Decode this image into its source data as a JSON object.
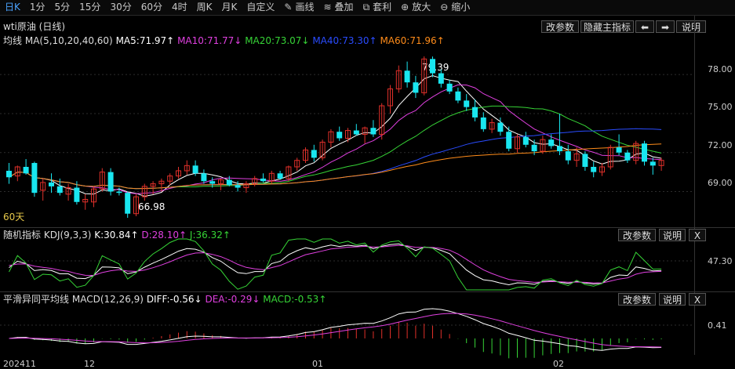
{
  "toolbar": {
    "items": [
      "日K",
      "1分",
      "5分",
      "15分",
      "30分",
      "60分",
      "4时",
      "周K",
      "月K",
      "自定义"
    ],
    "active": "日K",
    "draw_label": "画线",
    "overlay_label": "叠加",
    "arb_label": "套利",
    "zoom_in_label": "放大",
    "zoom_out_label": "缩小"
  },
  "main": {
    "symbol_title": "wti原油 (日线)",
    "ma_label": "均线",
    "ma_params": "MA(5,10,20,40,60)",
    "ma5": "MA5:71.97↑",
    "ma10": "MA10:71.77↓",
    "ma20": "MA20:73.07↓",
    "ma40": "MA40:73.30↑",
    "ma60": "MA60:71.96↑",
    "btn_params": "改参数",
    "btn_hide": "隐藏主指标",
    "btn_left": "⬅",
    "btn_right": "➡",
    "btn_help": "说明",
    "high_label": "79.39",
    "low_label": "66.98",
    "period_label": "60天",
    "yticks": [
      "78.00",
      "75.00",
      "72.00",
      "69.00"
    ]
  },
  "kdj": {
    "label": "随机指标",
    "params": "KDJ(9,3,3)",
    "k": "K:30.84↑",
    "d": "D:28.10↑",
    "j": "J:36.32↑",
    "btn_params": "改参数",
    "btn_help": "说明",
    "btn_close": "X",
    "ytick": "47.30"
  },
  "macd": {
    "label": "平滑异同平均线",
    "params": "MACD(12,26,9)",
    "diff": "DIFF:-0.56↓",
    "dea": "DEA:-0.29↓",
    "macd": "MACD:-0.53↑",
    "btn_params": "改参数",
    "btn_help": "说明",
    "btn_close": "X",
    "ytick": "0.41"
  },
  "xaxis": {
    "labels": [
      "202411",
      "12",
      "01",
      "02"
    ]
  },
  "colors": {
    "up": "#e0302a",
    "down": "#19e6f0",
    "ma5": "#ffffff",
    "ma10": "#e040e0",
    "ma20": "#36d436",
    "ma40": "#2a4cff",
    "ma60": "#ff8c1a",
    "kdj_k": "#ffffff",
    "kdj_d": "#e040e0",
    "kdj_j": "#36d436"
  },
  "chart_data": {
    "type": "candlestick",
    "yrange": [
      66.5,
      80.0
    ],
    "ohlc": [
      [
        70.6,
        71.2,
        69.6,
        70.1
      ],
      [
        70.2,
        71.0,
        69.8,
        70.9
      ],
      [
        70.9,
        71.5,
        70.3,
        70.4
      ],
      [
        71.2,
        71.3,
        68.6,
        68.9
      ],
      [
        69.1,
        70.0,
        68.3,
        69.7
      ],
      [
        69.7,
        70.4,
        68.9,
        69.4
      ],
      [
        69.4,
        70.0,
        68.7,
        68.9
      ],
      [
        68.8,
        69.6,
        68.3,
        69.3
      ],
      [
        69.3,
        69.8,
        68.0,
        68.2
      ],
      [
        68.2,
        68.8,
        67.6,
        68.4
      ],
      [
        68.2,
        69.4,
        67.8,
        69.2
      ],
      [
        69.2,
        70.8,
        69.0,
        70.5
      ],
      [
        70.5,
        70.8,
        68.7,
        69.0
      ],
      [
        69.0,
        69.3,
        68.7,
        68.9
      ],
      [
        68.9,
        69.0,
        66.98,
        67.3
      ],
      [
        67.3,
        68.8,
        67.1,
        68.6
      ],
      [
        68.6,
        69.6,
        68.3,
        69.4
      ],
      [
        69.4,
        69.8,
        68.8,
        69.6
      ],
      [
        69.6,
        70.0,
        69.0,
        69.8
      ],
      [
        69.8,
        70.4,
        69.5,
        70.2
      ],
      [
        70.2,
        70.9,
        70.0,
        70.6
      ],
      [
        70.6,
        71.4,
        70.3,
        71.0
      ],
      [
        71.0,
        71.4,
        70.2,
        70.4
      ],
      [
        70.4,
        70.7,
        69.6,
        69.8
      ],
      [
        69.8,
        70.1,
        69.3,
        69.6
      ],
      [
        69.6,
        70.0,
        69.1,
        69.9
      ],
      [
        69.9,
        70.2,
        69.4,
        69.5
      ],
      [
        69.5,
        69.8,
        69.0,
        69.3
      ],
      [
        69.3,
        69.8,
        68.9,
        69.6
      ],
      [
        69.6,
        70.2,
        69.4,
        70.0
      ],
      [
        70.0,
        70.4,
        69.7,
        69.8
      ],
      [
        69.8,
        70.6,
        69.6,
        70.4
      ],
      [
        70.4,
        70.6,
        69.9,
        70.0
      ],
      [
        70.0,
        71.0,
        69.8,
        70.9
      ],
      [
        70.9,
        71.6,
        70.6,
        71.4
      ],
      [
        71.4,
        72.4,
        71.2,
        72.2
      ],
      [
        72.2,
        72.6,
        71.3,
        71.6
      ],
      [
        71.6,
        73.0,
        71.4,
        72.8
      ],
      [
        72.8,
        73.8,
        72.4,
        73.6
      ],
      [
        73.6,
        74.0,
        72.9,
        73.1
      ],
      [
        73.1,
        73.9,
        72.8,
        73.7
      ],
      [
        73.7,
        74.2,
        73.3,
        73.4
      ],
      [
        73.4,
        74.0,
        72.7,
        73.9
      ],
      [
        73.9,
        74.5,
        73.2,
        73.4
      ],
      [
        73.4,
        75.8,
        73.0,
        75.6
      ],
      [
        75.6,
        77.2,
        75.0,
        76.9
      ],
      [
        76.9,
        78.7,
        76.6,
        78.3
      ],
      [
        78.3,
        79.0,
        77.0,
        77.4
      ],
      [
        77.4,
        77.9,
        76.2,
        76.6
      ],
      [
        76.6,
        79.4,
        76.4,
        79.2
      ],
      [
        79.2,
        79.39,
        77.8,
        78.1
      ],
      [
        78.1,
        78.4,
        77.0,
        77.3
      ],
      [
        77.3,
        77.6,
        76.5,
        76.7
      ],
      [
        76.7,
        77.0,
        75.8,
        76.0
      ],
      [
        76.0,
        76.5,
        75.2,
        75.5
      ],
      [
        75.5,
        76.1,
        74.4,
        74.7
      ],
      [
        74.7,
        75.1,
        73.6,
        73.8
      ],
      [
        73.8,
        74.6,
        73.5,
        74.3
      ],
      [
        74.3,
        74.7,
        73.3,
        73.6
      ],
      [
        73.6,
        74.0,
        72.1,
        72.3
      ],
      [
        72.3,
        73.4,
        72.0,
        73.2
      ],
      [
        73.2,
        73.6,
        72.4,
        72.6
      ],
      [
        72.6,
        73.0,
        71.8,
        72.1
      ],
      [
        72.1,
        73.3,
        71.9,
        73.0
      ],
      [
        73.0,
        73.4,
        72.3,
        72.5
      ],
      [
        72.5,
        75.0,
        71.8,
        72.1
      ],
      [
        72.1,
        72.6,
        71.1,
        71.4
      ],
      [
        71.4,
        72.4,
        70.9,
        71.9
      ],
      [
        71.9,
        72.1,
        70.6,
        70.9
      ],
      [
        70.9,
        71.3,
        70.1,
        70.5
      ],
      [
        70.5,
        71.2,
        70.2,
        70.9
      ],
      [
        70.9,
        72.6,
        70.7,
        72.4
      ],
      [
        72.4,
        73.4,
        71.8,
        72.0
      ],
      [
        72.0,
        72.2,
        71.2,
        71.4
      ],
      [
        71.4,
        72.9,
        71.1,
        72.7
      ],
      [
        72.7,
        72.9,
        71.0,
        71.3
      ],
      [
        71.3,
        71.6,
        70.3,
        71.0
      ],
      [
        71.0,
        71.6,
        70.6,
        71.4
      ]
    ]
  }
}
